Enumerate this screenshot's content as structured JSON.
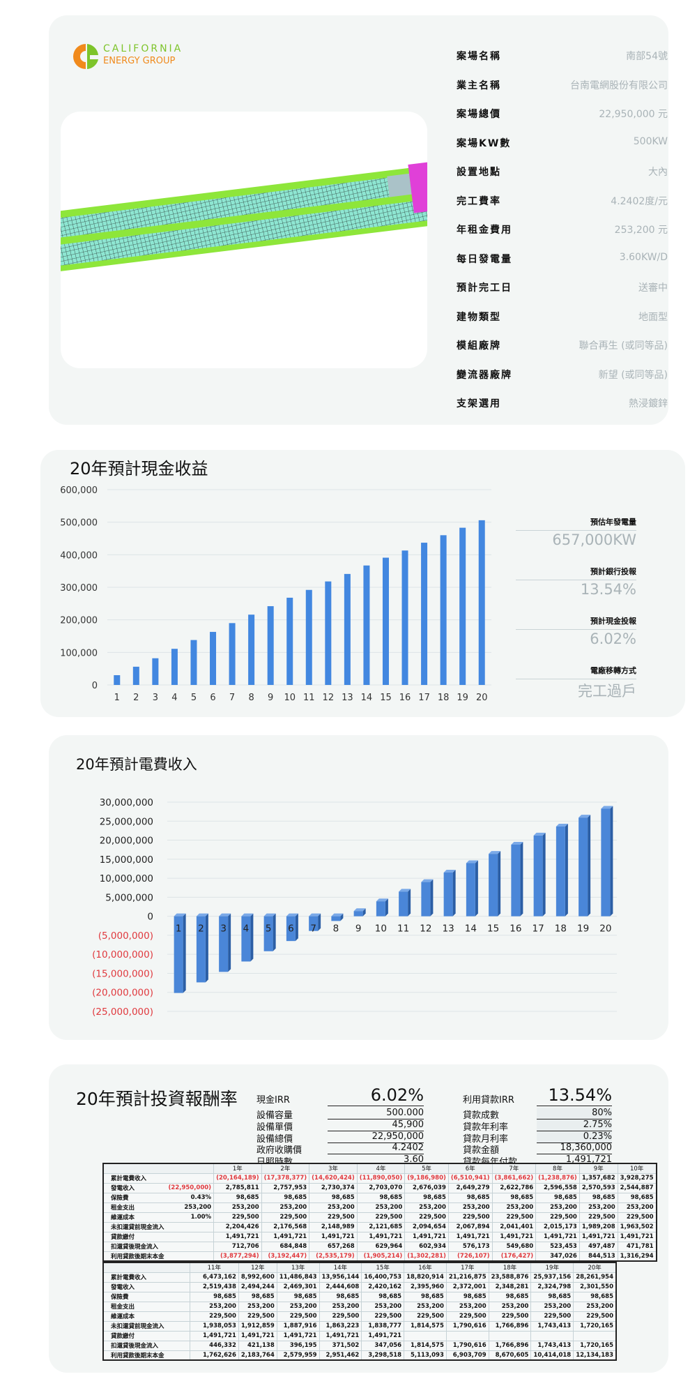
{
  "brand": {
    "line1": "CALIFORNIA",
    "line2": "ENERGY GROUP",
    "colors": {
      "orange": "#f08a1c",
      "green": "#7dc42a"
    }
  },
  "info": [
    {
      "label": "案場名稱",
      "value": "南部54號"
    },
    {
      "label": "業主名稱",
      "value": "台南電網股份有限公司"
    },
    {
      "label": "案場總價",
      "value": "22,950,000 元"
    },
    {
      "label": "案場KW數",
      "value": "500KW"
    },
    {
      "label": "設置地點",
      "value": "大內"
    },
    {
      "label": "完工費率",
      "value": "4.2402度/元"
    },
    {
      "label": "年租金費用",
      "value": "253,200 元"
    },
    {
      "label": "每日發電量",
      "value": "3.60KW/D"
    },
    {
      "label": "預計完工日",
      "value": "送審中"
    },
    {
      "label": "建物類型",
      "value": "地面型"
    },
    {
      "label": "模組廠牌",
      "value": "聯合再生 (或同等品)"
    },
    {
      "label": "變流器廠牌",
      "value": "新望 (或同等品)"
    },
    {
      "label": "支架選用",
      "value": "熱浸鍍鋅"
    }
  ],
  "side": [
    {
      "label": "預估年發電量",
      "value": "657,000KW"
    },
    {
      "label": "預計銀行投報",
      "value": "13.54%"
    },
    {
      "label": "預計現金投報",
      "value": "6.02%"
    },
    {
      "label": "電廠移轉方式",
      "value": "完工過戶"
    }
  ],
  "chart_data": [
    {
      "type": "bar",
      "title": "20年預計現金收益",
      "categories": [
        "1",
        "2",
        "3",
        "4",
        "5",
        "6",
        "7",
        "8",
        "9",
        "10",
        "11",
        "12",
        "13",
        "14",
        "15",
        "16",
        "17",
        "18",
        "19",
        "20"
      ],
      "values": [
        30000,
        56000,
        82000,
        111000,
        138000,
        163000,
        190000,
        216000,
        242000,
        268000,
        292000,
        318000,
        341000,
        367000,
        391000,
        413000,
        437000,
        460000,
        483000,
        506000
      ],
      "ylim": [
        0,
        600000
      ],
      "yticks": [
        "600,000",
        "500,000",
        "400,000",
        "300,000",
        "200,000",
        "100,000",
        "0"
      ],
      "grid": true,
      "color": "#4287e0"
    },
    {
      "type": "bar",
      "title": "20年預計電費收入",
      "categories": [
        "1",
        "2",
        "3",
        "4",
        "5",
        "6",
        "7",
        "8",
        "9",
        "10",
        "11",
        "12",
        "13",
        "14",
        "15",
        "16",
        "17",
        "18",
        "19",
        "20"
      ],
      "values": [
        -20164189,
        -17378377,
        -14620424,
        -11890050,
        -9186980,
        -6510941,
        -3861662,
        -1238876,
        1357682,
        3928275,
        6473162,
        8992600,
        11486843,
        13956144,
        16400753,
        18820914,
        21216875,
        23588876,
        25937156,
        28261954
      ],
      "ylim": [
        -25000000,
        30000000
      ],
      "yticks": [
        "30,000,000",
        "25,000,000",
        "20,000,000",
        "15,000,000",
        "10,000,000",
        "5,000,000",
        "0",
        "(5,000,000)",
        "(10,000,000)",
        "(15,000,000)",
        "(20,000,000)",
        "(25,000,000)"
      ],
      "grid": true,
      "color": "#4a86d8",
      "negative_label_color": "#e0393e"
    }
  ],
  "irr": {
    "title": "20年預計投資報酬率",
    "cash_irr_label": "現金IRR",
    "cash_irr": "6.02%",
    "loan_irr_label": "利用貸款IRR",
    "loan_irr": "13.54%",
    "left": [
      {
        "label": "設備容量",
        "value": "500.000"
      },
      {
        "label": "設備單價",
        "value": "45,900"
      },
      {
        "label": "設備總價",
        "value": "22,950,000"
      },
      {
        "label": "政府收購價",
        "value": "4.2402"
      },
      {
        "label": "日照時數",
        "value": "3.60"
      }
    ],
    "right": [
      {
        "label": "貸款成數",
        "value": "80%"
      },
      {
        "label": "貸款年利率",
        "value": "2.75%"
      },
      {
        "label": "貸款月利率",
        "value": "0.23%"
      },
      {
        "label": "貸款金額",
        "value": "18,360,000"
      },
      {
        "label": "貸款每年付款",
        "value": "1,491,721"
      }
    ]
  },
  "table": {
    "row_labels": [
      "累計電費收入",
      "發電收入",
      "保險費",
      "租金支出",
      "維運成本",
      "未扣還貸前現金流入",
      "貸款繳付",
      "扣還貸後現金流入",
      "利用貸款後期末本金"
    ],
    "params": [
      "",
      "(22,950,000)",
      "0.43%",
      "253,200",
      "1.00%",
      "",
      "",
      "",
      ""
    ],
    "blocks": [
      {
        "years": [
          "1年",
          "2年",
          "3年",
          "4年",
          "5年",
          "6年",
          "7年",
          "8年",
          "9年",
          "10年"
        ],
        "rows": [
          [
            "(20,164,189)",
            "(17,378,377)",
            "(14,620,424)",
            "(11,890,050)",
            "(9,186,980)",
            "(6,510,941)",
            "(3,861,662)",
            "(1,238,876)",
            "1,357,682",
            "3,928,275"
          ],
          [
            "2,785,811",
            "2,757,953",
            "2,730,374",
            "2,703,070",
            "2,676,039",
            "2,649,279",
            "2,622,786",
            "2,596,558",
            "2,570,593",
            "2,544,887"
          ],
          [
            "98,685",
            "98,685",
            "98,685",
            "98,685",
            "98,685",
            "98,685",
            "98,685",
            "98,685",
            "98,685",
            "98,685"
          ],
          [
            "253,200",
            "253,200",
            "253,200",
            "253,200",
            "253,200",
            "253,200",
            "253,200",
            "253,200",
            "253,200",
            "253,200"
          ],
          [
            "229,500",
            "229,500",
            "229,500",
            "229,500",
            "229,500",
            "229,500",
            "229,500",
            "229,500",
            "229,500",
            "229,500"
          ],
          [
            "2,204,426",
            "2,176,568",
            "2,148,989",
            "2,121,685",
            "2,094,654",
            "2,067,894",
            "2,041,401",
            "2,015,173",
            "1,989,208",
            "1,963,502"
          ],
          [
            "1,491,721",
            "1,491,721",
            "1,491,721",
            "1,491,721",
            "1,491,721",
            "1,491,721",
            "1,491,721",
            "1,491,721",
            "1,491,721",
            "1,491,721"
          ],
          [
            "712,706",
            "684,848",
            "657,268",
            "629,964",
            "602,934",
            "576,173",
            "549,680",
            "523,453",
            "497,487",
            "471,781"
          ],
          [
            "(3,877,294)",
            "(3,192,447)",
            "(2,535,179)",
            "(1,905,214)",
            "(1,302,281)",
            "(726,107)",
            "(176,427)",
            "347,026",
            "844,513",
            "1,316,294"
          ]
        ]
      },
      {
        "years": [
          "11年",
          "12年",
          "13年",
          "14年",
          "15年",
          "16年",
          "17年",
          "18年",
          "19年",
          "20年"
        ],
        "rows": [
          [
            "6,473,162",
            "8,992,600",
            "11,486,843",
            "13,956,144",
            "16,400,753",
            "18,820,914",
            "21,216,875",
            "23,588,876",
            "25,937,156",
            "28,261,954"
          ],
          [
            "2,519,438",
            "2,494,244",
            "2,469,301",
            "2,444,608",
            "2,420,162",
            "2,395,960",
            "2,372,001",
            "2,348,281",
            "2,324,798",
            "2,301,550"
          ],
          [
            "98,685",
            "98,685",
            "98,685",
            "98,685",
            "98,685",
            "98,685",
            "98,685",
            "98,685",
            "98,685",
            "98,685"
          ],
          [
            "253,200",
            "253,200",
            "253,200",
            "253,200",
            "253,200",
            "253,200",
            "253,200",
            "253,200",
            "253,200",
            "253,200"
          ],
          [
            "229,500",
            "229,500",
            "229,500",
            "229,500",
            "229,500",
            "229,500",
            "229,500",
            "229,500",
            "229,500",
            "229,500"
          ],
          [
            "1,938,053",
            "1,912,859",
            "1,887,916",
            "1,863,223",
            "1,838,777",
            "1,814,575",
            "1,790,616",
            "1,766,896",
            "1,743,413",
            "1,720,165"
          ],
          [
            "1,491,721",
            "1,491,721",
            "1,491,721",
            "1,491,721",
            "1,491,721",
            "",
            "",
            "",
            "",
            ""
          ],
          [
            "446,332",
            "421,138",
            "396,195",
            "371,502",
            "347,056",
            "1,814,575",
            "1,790,616",
            "1,766,896",
            "1,743,413",
            "1,720,165"
          ],
          [
            "1,762,626",
            "2,183,764",
            "2,579,959",
            "2,951,462",
            "3,298,518",
            "5,113,093",
            "6,903,709",
            "8,670,605",
            "10,414,018",
            "12,134,183"
          ]
        ]
      }
    ]
  }
}
